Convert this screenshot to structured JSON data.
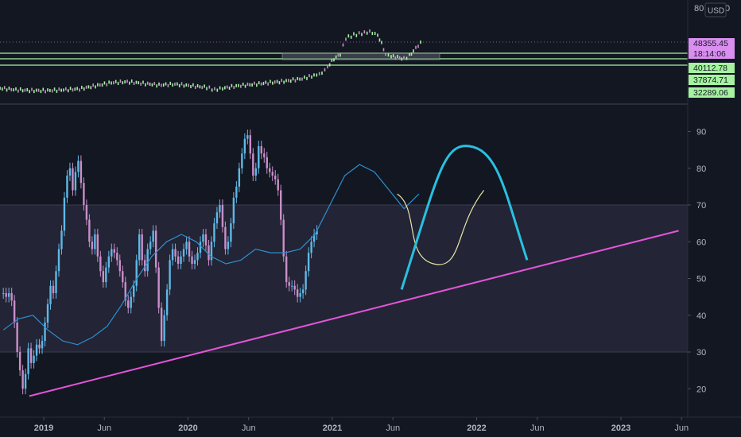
{
  "currency": "USD",
  "top_axis_partial": "80",
  "top_axis_partial_suffix": "0",
  "price_tags": [
    {
      "label": "48355.45",
      "role": "last-price",
      "color": "#d98ef0"
    },
    {
      "label": "18:14:06",
      "role": "countdown",
      "color": "#d98ef0"
    },
    {
      "label": "40112.78",
      "role": "level",
      "color": "#a6f2a0"
    },
    {
      "label": "37874.71",
      "role": "level",
      "color": "#a6f2a0"
    },
    {
      "label": "32289.06",
      "role": "level",
      "color": "#a6f2a0"
    }
  ],
  "colors": {
    "background": "#131722",
    "up_candle": "#5fb8e6",
    "down_candle": "#c98fc9",
    "rsi_ma": "#2e8fcf",
    "trendline": "#e255d8",
    "projection_main": "#29c0e0",
    "projection_alt": "#e8e6a8",
    "band": "#2a2a3c",
    "level_lines": "#a6f2a0"
  },
  "x_axis": {
    "labels": [
      "2019",
      "Jun",
      "2020",
      "Jun",
      "2021",
      "Jun",
      "2022",
      "Jun",
      "2023",
      "Jun"
    ]
  },
  "chart_data": [
    {
      "type": "line",
      "name_hint": "price-panel",
      "y_levels": [
        48355.45,
        40112.78,
        37874.71,
        32289.06
      ],
      "horizontal_levels": [
        40112.78,
        37874.71,
        32289.06
      ]
    },
    {
      "type": "bar",
      "name_hint": "rsi-panel",
      "y_ticks": [
        20,
        30,
        40,
        50,
        60,
        70,
        80,
        90
      ],
      "ylim": [
        15,
        95
      ],
      "band": [
        30,
        70
      ],
      "x_labels": [
        "2019",
        "Jun",
        "2020",
        "Jun",
        "2021",
        "Jun",
        "2022",
        "Jun",
        "2023",
        "Jun"
      ],
      "rsi_weekly": [
        46,
        45,
        46,
        44,
        38,
        30,
        25,
        20,
        24,
        31,
        27,
        29,
        32,
        31,
        33,
        38,
        43,
        48,
        46,
        52,
        58,
        63,
        72,
        78,
        80,
        74,
        79,
        82,
        76,
        70,
        66,
        60,
        58,
        62,
        56,
        52,
        49,
        53,
        56,
        58,
        57,
        55,
        52,
        49,
        44,
        42,
        45,
        48,
        55,
        62,
        55,
        52,
        58,
        60,
        63,
        53,
        42,
        33,
        40,
        47,
        55,
        58,
        56,
        54,
        56,
        58,
        60,
        56,
        54,
        55,
        57,
        60,
        62,
        59,
        55,
        60,
        65,
        68,
        70,
        64,
        58,
        60,
        65,
        72,
        75,
        80,
        84,
        88,
        89,
        84,
        78,
        80,
        86,
        84,
        83,
        80,
        79,
        78,
        77,
        74,
        66,
        56,
        49,
        48,
        48,
        47,
        45,
        46,
        47,
        52,
        57,
        60,
        62,
        63
      ],
      "rsi_ma": [
        36,
        39,
        40,
        36,
        33,
        32,
        34,
        37,
        43,
        50,
        56,
        60,
        62,
        60,
        56,
        54,
        55,
        58,
        57,
        57,
        58,
        62,
        70,
        78,
        81,
        79,
        74,
        69,
        73
      ],
      "trendline": {
        "start": [
          2018.9,
          18
        ],
        "end": [
          2023.4,
          63
        ]
      },
      "projection_main": {
        "from": [
          2021.48,
          47
        ],
        "peak": [
          2021.95,
          86
        ],
        "to": [
          2022.35,
          55
        ]
      },
      "projection_alt": {
        "from": [
          2021.45,
          73
        ],
        "trough": [
          2021.7,
          54
        ],
        "to": [
          2022.05,
          74
        ]
      }
    }
  ]
}
